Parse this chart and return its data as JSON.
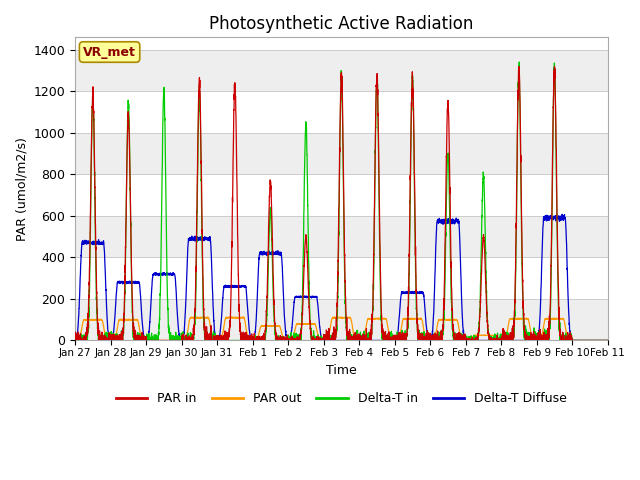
{
  "title": "Photosynthetic Active Radiation",
  "xlabel": "Time",
  "ylabel": "PAR (umol/m2/s)",
  "ylim": [
    0,
    1460
  ],
  "yticks": [
    0,
    200,
    400,
    600,
    800,
    1000,
    1200,
    1400
  ],
  "plot_bg": "#ffffff",
  "grid_color": "#dddddd",
  "legend_labels": [
    "PAR in",
    "PAR out",
    "Delta-T in",
    "Delta-T Diffuse"
  ],
  "legend_colors": [
    "#cc0000",
    "#ff9900",
    "#00cc00",
    "#0000cc"
  ],
  "annotation_text": "VR_met",
  "annotation_color": "#8b0000",
  "annotation_bg": "#ffff99",
  "xticklabels": [
    "Jan 27",
    "Jan 28",
    "Jan 29",
    "Jan 30",
    "Jan 31",
    "Feb 1",
    "Feb 2",
    "Feb 3",
    "Feb 4",
    "Feb 5",
    "Feb 6",
    "Feb 7",
    "Feb 8",
    "Feb 9",
    "Feb 10",
    "Feb 11"
  ],
  "n_points_per_day": 288,
  "n_days": 15,
  "daily_peaks_par_in": [
    1180,
    1080,
    0,
    1250,
    1225,
    760,
    500,
    1280,
    1265,
    1265,
    1140,
    500,
    1300,
    1300,
    0
  ],
  "daily_peaks_par_out": [
    100,
    100,
    0,
    110,
    110,
    70,
    80,
    110,
    105,
    105,
    100,
    25,
    105,
    105,
    0
  ],
  "daily_peaks_delta_in": [
    1170,
    1150,
    1200,
    1200,
    0,
    620,
    1040,
    1280,
    1270,
    1270,
    900,
    800,
    1300,
    1310,
    0
  ],
  "daily_peaks_delta_dif": [
    470,
    280,
    320,
    490,
    260,
    420,
    210,
    0,
    0,
    230,
    575,
    0,
    0,
    590,
    0
  ]
}
